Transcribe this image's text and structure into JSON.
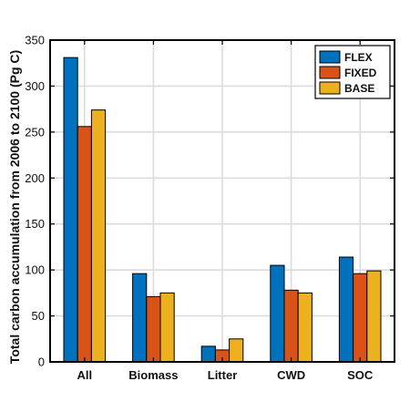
{
  "chart_data": {
    "type": "bar",
    "categories": [
      "All",
      "Biomass",
      "Litter",
      "CWD",
      "SOC"
    ],
    "series": [
      {
        "name": "FLEX",
        "color": "#0072BD",
        "values": [
          331,
          96,
          17,
          105,
          114
        ]
      },
      {
        "name": "FIXED",
        "color": "#D95319",
        "values": [
          256,
          71,
          13,
          78,
          96
        ]
      },
      {
        "name": "BASE",
        "color": "#EDB120",
        "values": [
          274,
          75,
          25,
          75,
          99
        ]
      }
    ],
    "title": "",
    "xlabel": "",
    "ylabel": "Total carbon accumulation from 2006 to 2100 (Pg C)",
    "ylim": [
      0,
      350
    ],
    "yticks": [
      0,
      50,
      100,
      150,
      200,
      250,
      300,
      350
    ],
    "grid": true,
    "legend_position": "top-right"
  }
}
